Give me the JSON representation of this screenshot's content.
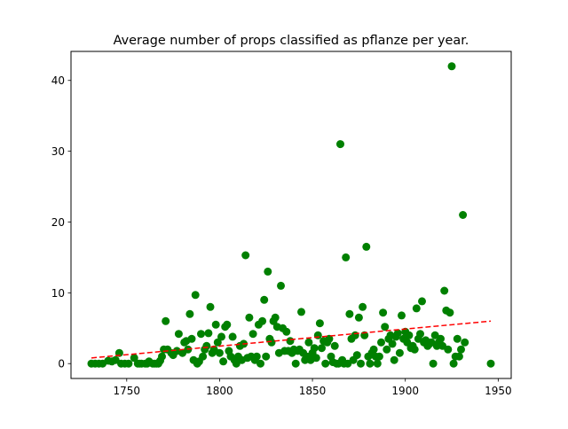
{
  "chart_data": {
    "type": "scatter",
    "title": "Average number of props classified as pflanze per year.",
    "xlabel": "",
    "ylabel": "",
    "xlim": [
      1720,
      1957
    ],
    "ylim": [
      -2.1,
      44.1
    ],
    "xticks": [
      1750,
      1800,
      1850,
      1900,
      1950
    ],
    "yticks": [
      0,
      10,
      20,
      30,
      40
    ],
    "grid": false,
    "colors": {
      "points": "#008000",
      "trend": "#ff0000"
    },
    "series": [
      {
        "points": [
          [
            1731,
            0
          ],
          [
            1733,
            0
          ],
          [
            1735,
            0
          ],
          [
            1737,
            0
          ],
          [
            1740,
            0.4
          ],
          [
            1742,
            0.3
          ],
          [
            1744,
            0.5
          ],
          [
            1746,
            1.5
          ],
          [
            1747,
            0
          ],
          [
            1749,
            0
          ],
          [
            1751,
            0
          ],
          [
            1754,
            0.8
          ],
          [
            1756,
            0
          ],
          [
            1757,
            0
          ],
          [
            1758,
            0
          ],
          [
            1760,
            0
          ],
          [
            1761,
            0
          ],
          [
            1762,
            0.3
          ],
          [
            1764,
            0
          ],
          [
            1765,
            0
          ],
          [
            1766,
            0
          ],
          [
            1767,
            0
          ],
          [
            1768,
            0.4
          ],
          [
            1769,
            1.0
          ],
          [
            1770,
            2.0
          ],
          [
            1771,
            6.0
          ],
          [
            1772,
            2.0
          ],
          [
            1774,
            1.5
          ],
          [
            1775,
            1.2
          ],
          [
            1777,
            1.8
          ],
          [
            1778,
            4.2
          ],
          [
            1780,
            1.5
          ],
          [
            1781,
            3.0
          ],
          [
            1782,
            3.2
          ],
          [
            1783,
            2.0
          ],
          [
            1784,
            7.0
          ],
          [
            1785,
            3.5
          ],
          [
            1786,
            0.5
          ],
          [
            1787,
            9.7
          ],
          [
            1788,
            0
          ],
          [
            1789,
            0.3
          ],
          [
            1790,
            4.2
          ],
          [
            1791,
            1.0
          ],
          [
            1792,
            2.0
          ],
          [
            1793,
            2.5
          ],
          [
            1794,
            4.3
          ],
          [
            1795,
            8.0
          ],
          [
            1796,
            1.5
          ],
          [
            1797,
            2.0
          ],
          [
            1798,
            5.5
          ],
          [
            1799,
            3.0
          ],
          [
            1800,
            1.5
          ],
          [
            1801,
            3.8
          ],
          [
            1802,
            0.3
          ],
          [
            1803,
            5.2
          ],
          [
            1804,
            5.5
          ],
          [
            1805,
            1.8
          ],
          [
            1806,
            1.0
          ],
          [
            1807,
            3.8
          ],
          [
            1808,
            0.5
          ],
          [
            1809,
            0
          ],
          [
            1810,
            1.0
          ],
          [
            1811,
            2.5
          ],
          [
            1812,
            0.5
          ],
          [
            1813,
            2.8
          ],
          [
            1814,
            15.3
          ],
          [
            1815,
            0.8
          ],
          [
            1816,
            6.5
          ],
          [
            1817,
            1.0
          ],
          [
            1818,
            4.2
          ],
          [
            1819,
            0.5
          ],
          [
            1820,
            1.0
          ],
          [
            1821,
            5.5
          ],
          [
            1822,
            0
          ],
          [
            1823,
            6.0
          ],
          [
            1824,
            9.0
          ],
          [
            1825,
            1.0
          ],
          [
            1826,
            13.0
          ],
          [
            1827,
            3.5
          ],
          [
            1828,
            3.0
          ],
          [
            1829,
            6.0
          ],
          [
            1830,
            6.5
          ],
          [
            1831,
            5.2
          ],
          [
            1832,
            1.5
          ],
          [
            1833,
            11.0
          ],
          [
            1834,
            5.0
          ],
          [
            1835,
            1.8
          ],
          [
            1836,
            4.5
          ],
          [
            1837,
            1.8
          ],
          [
            1838,
            3.2
          ],
          [
            1839,
            1.5
          ],
          [
            1840,
            2.0
          ],
          [
            1841,
            0
          ],
          [
            1842,
            1.8
          ],
          [
            1843,
            2.0
          ],
          [
            1844,
            7.3
          ],
          [
            1845,
            1.5
          ],
          [
            1846,
            0.5
          ],
          [
            1847,
            1.0
          ],
          [
            1848,
            3.0
          ],
          [
            1849,
            0.5
          ],
          [
            1850,
            1.5
          ],
          [
            1851,
            2.2
          ],
          [
            1852,
            0.8
          ],
          [
            1853,
            4.0
          ],
          [
            1854,
            5.7
          ],
          [
            1855,
            2.2
          ],
          [
            1856,
            3.2
          ],
          [
            1857,
            0
          ],
          [
            1858,
            3.0
          ],
          [
            1859,
            3.5
          ],
          [
            1860,
            1.0
          ],
          [
            1861,
            0.2
          ],
          [
            1862,
            2.5
          ],
          [
            1863,
            0
          ],
          [
            1864,
            0
          ],
          [
            1865,
            31.0
          ],
          [
            1866,
            0.5
          ],
          [
            1867,
            0
          ],
          [
            1868,
            15.0
          ],
          [
            1869,
            0
          ],
          [
            1870,
            7.0
          ],
          [
            1871,
            3.5
          ],
          [
            1872,
            0.5
          ],
          [
            1873,
            4.0
          ],
          [
            1874,
            1.2
          ],
          [
            1875,
            6.5
          ],
          [
            1876,
            0
          ],
          [
            1877,
            8.0
          ],
          [
            1878,
            4.0
          ],
          [
            1879,
            16.5
          ],
          [
            1880,
            1.0
          ],
          [
            1881,
            0
          ],
          [
            1882,
            1.5
          ],
          [
            1883,
            2.0
          ],
          [
            1884,
            1.0
          ],
          [
            1885,
            0
          ],
          [
            1886,
            1.0
          ],
          [
            1887,
            3.0
          ],
          [
            1888,
            7.2
          ],
          [
            1889,
            5.2
          ],
          [
            1890,
            2.0
          ],
          [
            1891,
            3.5
          ],
          [
            1892,
            4.0
          ],
          [
            1893,
            2.8
          ],
          [
            1894,
            0.5
          ],
          [
            1895,
            3.8
          ],
          [
            1896,
            4.3
          ],
          [
            1897,
            1.5
          ],
          [
            1898,
            6.8
          ],
          [
            1899,
            3.5
          ],
          [
            1900,
            4.5
          ],
          [
            1901,
            3.0
          ],
          [
            1902,
            4.0
          ],
          [
            1903,
            2.2
          ],
          [
            1904,
            2.5
          ],
          [
            1905,
            2.0
          ],
          [
            1906,
            7.8
          ],
          [
            1907,
            3.5
          ],
          [
            1908,
            4.2
          ],
          [
            1909,
            8.8
          ],
          [
            1910,
            3.0
          ],
          [
            1911,
            3.3
          ],
          [
            1912,
            2.5
          ],
          [
            1913,
            2.8
          ],
          [
            1914,
            3.0
          ],
          [
            1915,
            0
          ],
          [
            1916,
            4.0
          ],
          [
            1917,
            2.5
          ],
          [
            1918,
            3.0
          ],
          [
            1919,
            3.5
          ],
          [
            1920,
            2.5
          ],
          [
            1921,
            10.3
          ],
          [
            1922,
            7.5
          ],
          [
            1923,
            2.0
          ],
          [
            1924,
            7.2
          ],
          [
            1925,
            42.0
          ],
          [
            1926,
            0
          ],
          [
            1927,
            1.0
          ],
          [
            1928,
            3.5
          ],
          [
            1929,
            1.0
          ],
          [
            1930,
            2.0
          ],
          [
            1931,
            21.0
          ],
          [
            1932,
            3.0
          ],
          [
            1946,
            0
          ]
        ]
      }
    ],
    "trend": {
      "x": [
        1731,
        1946
      ],
      "y": [
        0.8,
        6.0
      ]
    }
  }
}
